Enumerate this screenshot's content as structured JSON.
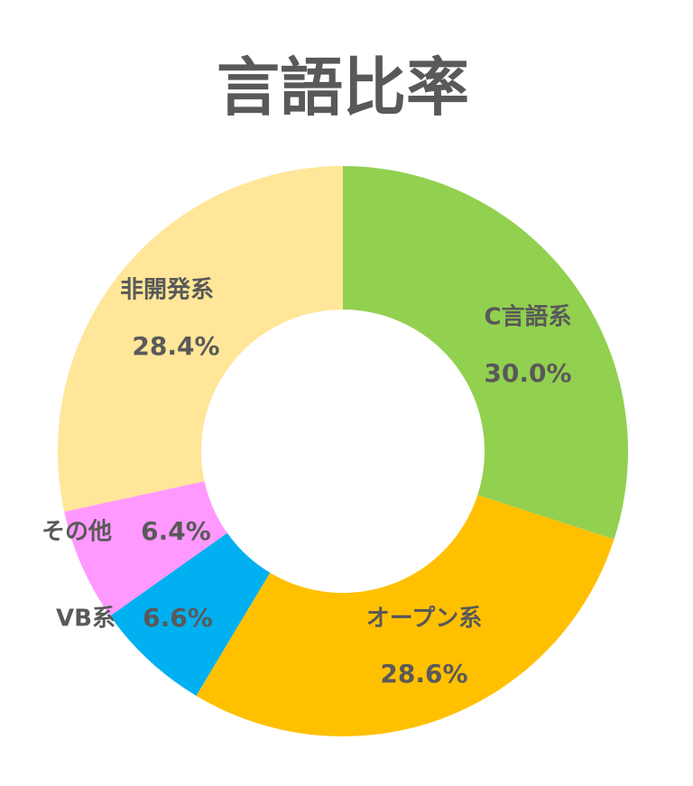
{
  "chart_data": {
    "type": "donut",
    "title": "言語比率",
    "categories": [
      "C言語系",
      "オープン系",
      "VB系",
      "その他",
      "非開発系"
    ],
    "values": [
      30,
      28.6,
      6.6,
      6.4,
      28.4
    ],
    "value_labels": [
      "30.0%",
      "28.6%",
      "6.6%",
      "6.4%",
      "28.4%"
    ],
    "colors": [
      "#92d050",
      "#ffc000",
      "#00b0f0",
      "#ff99ff",
      "#ffe699"
    ]
  }
}
